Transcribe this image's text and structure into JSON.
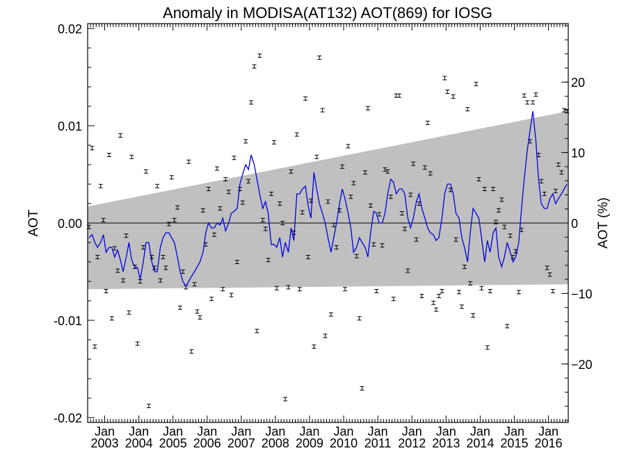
{
  "chart_data": {
    "type": "scatter",
    "title": "Anomaly in MODISA(AT132) AOT(869) for IOSG",
    "ylabel": "AOT",
    "y2label": "AOT (%)",
    "xlabel": "",
    "xlim": [
      2002.5,
      2016.58
    ],
    "ylim": [
      -0.0205,
      0.0205
    ],
    "y2lim": [
      -28.3,
      28.3
    ],
    "yticks": [
      "-0.02",
      "-0.01",
      "0.00",
      "0.01",
      "0.02"
    ],
    "y2ticks": [
      "−20",
      "−10",
      "0",
      "10",
      "20"
    ],
    "xtick_top": [
      "Jan",
      "Jan",
      "Jan",
      "Jan",
      "Jan",
      "Jan",
      "Jan",
      "Jan",
      "Jan",
      "Jan",
      "Jan",
      "Jan",
      "Jan",
      "Jan"
    ],
    "xtick_bottom": [
      "2003",
      "2004",
      "2005",
      "2006",
      "2007",
      "2008",
      "2009",
      "2010",
      "2011",
      "2012",
      "2013",
      "2014",
      "2015",
      "2016"
    ],
    "xtick_values": [
      2003,
      2004,
      2005,
      2006,
      2007,
      2008,
      2009,
      2010,
      2011,
      2012,
      2013,
      2014,
      2015,
      2016
    ],
    "grid": false,
    "colors": {
      "smooth_line": "#0000dd",
      "band": "#c0c0c0",
      "points": "#000000",
      "zero_line": "#000000"
    },
    "band": {
      "upper": [
        [
          2002.5,
          0.0017
        ],
        [
          2016.58,
          0.0115
        ]
      ],
      "lower": [
        [
          2002.5,
          -0.0068
        ],
        [
          2016.58,
          -0.0063
        ]
      ]
    },
    "points": [
      [
        2002.54,
        -0.0004
      ],
      [
        2002.63,
        0.0077
      ],
      [
        2002.71,
        -0.0127
      ],
      [
        2002.79,
        -0.0035
      ],
      [
        2002.88,
        0.0038
      ],
      [
        2002.96,
        0.0003
      ],
      [
        2003.04,
        -0.007
      ],
      [
        2003.13,
        0.007
      ],
      [
        2003.21,
        -0.0098
      ],
      [
        2003.29,
        -0.0026
      ],
      [
        2003.38,
        -0.0049
      ],
      [
        2003.46,
        0.009
      ],
      [
        2003.54,
        -0.0059
      ],
      [
        2003.63,
        -0.0013
      ],
      [
        2003.71,
        -0.0092
      ],
      [
        2003.79,
        0.0068
      ],
      [
        2003.88,
        -0.0045
      ],
      [
        2003.96,
        -0.0124
      ],
      [
        2004.04,
        -0.006
      ],
      [
        2004.13,
        -0.0025
      ],
      [
        2004.21,
        0.0053
      ],
      [
        2004.29,
        -0.0188
      ],
      [
        2004.38,
        -0.0035
      ],
      [
        2004.46,
        -0.0046
      ],
      [
        2004.54,
        0.0038
      ],
      [
        2004.63,
        -0.0059
      ],
      [
        2004.71,
        -0.0035
      ],
      [
        2004.79,
        -0.0046
      ],
      [
        2004.88,
        -0.0001
      ],
      [
        2004.96,
        0.0047
      ],
      [
        2005.04,
        0.0003
      ],
      [
        2005.13,
        0.0016
      ],
      [
        2005.21,
        -0.0087
      ],
      [
        2005.29,
        -0.005
      ],
      [
        2005.38,
        -0.0066
      ],
      [
        2005.46,
        0.0063
      ],
      [
        2005.54,
        -0.0132
      ],
      [
        2005.63,
        -0.0063
      ],
      [
        2005.71,
        -0.0091
      ],
      [
        2005.79,
        -0.0097
      ],
      [
        2005.88,
        0.0013
      ],
      [
        2005.96,
        -0.0022
      ],
      [
        2006.04,
        0.0035
      ],
      [
        2006.13,
        -0.0078
      ],
      [
        2006.21,
        -0.0012
      ],
      [
        2006.29,
        0.0056
      ],
      [
        2006.38,
        0.0015
      ],
      [
        2006.46,
        -0.0068
      ],
      [
        2006.54,
        0.0045
      ],
      [
        2006.63,
        0.0032
      ],
      [
        2006.71,
        -0.0074
      ],
      [
        2006.79,
        0.0067
      ],
      [
        2006.88,
        -0.004
      ],
      [
        2006.96,
        0.0035
      ],
      [
        2007.04,
        0.0021
      ],
      [
        2007.13,
        0.0084
      ],
      [
        2007.21,
        0.0043
      ],
      [
        2007.29,
        0.0124
      ],
      [
        2007.38,
        0.0161
      ],
      [
        2007.46,
        -0.0111
      ],
      [
        2007.54,
        0.0172
      ],
      [
        2007.63,
        0.0003
      ],
      [
        2007.71,
        -0.0006
      ],
      [
        2007.79,
        -0.0038
      ],
      [
        2007.88,
        0.003
      ],
      [
        2007.96,
        0.0083
      ],
      [
        2008.04,
        -0.0067
      ],
      [
        2008.13,
        0.002
      ],
      [
        2008.21,
        0.0
      ],
      [
        2008.29,
        -0.0181
      ],
      [
        2008.38,
        -0.0066
      ],
      [
        2008.46,
        0.0053
      ],
      [
        2008.54,
        -0.001
      ],
      [
        2008.63,
        0.0091
      ],
      [
        2008.71,
        -0.0068
      ],
      [
        2008.79,
        0.0011
      ],
      [
        2008.88,
        0.0128
      ],
      [
        2008.96,
        -0.0035
      ],
      [
        2009.04,
        0.0023
      ],
      [
        2009.13,
        -0.0127
      ],
      [
        2009.21,
        0.0068
      ],
      [
        2009.29,
        0.017
      ],
      [
        2009.38,
        0.0116
      ],
      [
        2009.46,
        -0.0116
      ],
      [
        2009.54,
        0.0022
      ],
      [
        2009.63,
        -0.0094
      ],
      [
        2009.71,
        -0.0002
      ],
      [
        2009.79,
        -0.0025
      ],
      [
        2009.88,
        0.0013
      ],
      [
        2009.96,
        0.0058
      ],
      [
        2010.04,
        -0.0068
      ],
      [
        2010.13,
        0.0079
      ],
      [
        2010.21,
        0.0027
      ],
      [
        2010.29,
        0.0041
      ],
      [
        2010.38,
        -0.0034
      ],
      [
        2010.46,
        -0.0098
      ],
      [
        2010.54,
        -0.017
      ],
      [
        2010.63,
        0.0052
      ],
      [
        2010.71,
        0.0118
      ],
      [
        2010.79,
        0.0018
      ],
      [
        2010.88,
        -0.0022
      ],
      [
        2010.96,
        -0.007
      ],
      [
        2011.04,
        0.0009
      ],
      [
        2011.13,
        -0.0023
      ],
      [
        2011.21,
        0.0055
      ],
      [
        2011.29,
        0.0053
      ],
      [
        2011.38,
        0.0027
      ],
      [
        2011.46,
        -0.0078
      ],
      [
        2011.54,
        0.0131
      ],
      [
        2011.63,
        0.0131
      ],
      [
        2011.71,
        0.001
      ],
      [
        2011.79,
        -0.0006
      ],
      [
        2011.88,
        -0.0049
      ],
      [
        2011.96,
        0.0029
      ],
      [
        2012.04,
        0.0061
      ],
      [
        2012.13,
        -0.0017
      ],
      [
        2012.21,
        0.002
      ],
      [
        2012.29,
        -0.0075
      ],
      [
        2012.38,
        0.0057
      ],
      [
        2012.46,
        0.0103
      ],
      [
        2012.54,
        0.0051
      ],
      [
        2012.63,
        -0.0082
      ],
      [
        2012.71,
        -0.0089
      ],
      [
        2012.79,
        -0.0075
      ],
      [
        2012.88,
        -0.007
      ],
      [
        2012.96,
        0.0149
      ],
      [
        2013.04,
        0.0135
      ],
      [
        2013.13,
        0.0034
      ],
      [
        2013.21,
        0.013
      ],
      [
        2013.29,
        -0.0017
      ],
      [
        2013.38,
        -0.0071
      ],
      [
        2013.46,
        -0.0086
      ],
      [
        2013.54,
        -0.0045
      ],
      [
        2013.63,
        0.0117
      ],
      [
        2013.71,
        -0.0062
      ],
      [
        2013.79,
        -0.0095
      ],
      [
        2013.88,
        0.0143
      ],
      [
        2013.96,
        0.0045
      ],
      [
        2014.04,
        -0.0067
      ],
      [
        2014.13,
        0.0035
      ],
      [
        2014.21,
        -0.0128
      ],
      [
        2014.29,
        -0.007
      ],
      [
        2014.38,
        0.0035
      ],
      [
        2014.46,
        0.0001
      ],
      [
        2014.54,
        0.0013
      ],
      [
        2014.63,
        0.0024
      ],
      [
        2014.71,
        -0.0004
      ],
      [
        2014.79,
        -0.0106
      ],
      [
        2014.88,
        -0.0013
      ],
      [
        2014.96,
        -0.0035
      ],
      [
        2015.04,
        -0.0029
      ],
      [
        2015.13,
        -0.0071
      ],
      [
        2015.21,
        -0.0007
      ],
      [
        2015.29,
        0.0131
      ],
      [
        2015.38,
        0.0124
      ],
      [
        2015.46,
        0.0084
      ],
      [
        2015.54,
        0.0124
      ],
      [
        2015.63,
        0.0132
      ],
      [
        2015.71,
        0.007
      ],
      [
        2015.79,
        0.0043
      ],
      [
        2015.88,
        0.003
      ],
      [
        2015.96,
        -0.0046
      ],
      [
        2016.04,
        -0.0053
      ],
      [
        2016.13,
        -0.007
      ],
      [
        2016.21,
        0.0033
      ],
      [
        2016.29,
        0.006
      ],
      [
        2016.38,
        0.0052
      ],
      [
        2016.46,
        0.0116
      ],
      [
        2016.54,
        0.0115
      ]
    ],
    "smooth_line": [
      [
        2002.54,
        -0.0015
      ],
      [
        2002.63,
        -0.0012
      ],
      [
        2002.71,
        -0.002
      ],
      [
        2002.79,
        -0.0025
      ],
      [
        2002.88,
        -0.002
      ],
      [
        2002.96,
        -0.0012
      ],
      [
        2003.04,
        -0.003
      ],
      [
        2003.13,
        -0.0025
      ],
      [
        2003.21,
        -0.0025
      ],
      [
        2003.29,
        -0.0035
      ],
      [
        2003.38,
        -0.0028
      ],
      [
        2003.46,
        -0.0038
      ],
      [
        2003.54,
        -0.005
      ],
      [
        2003.63,
        -0.0035
      ],
      [
        2003.71,
        -0.002
      ],
      [
        2003.79,
        -0.0038
      ],
      [
        2003.88,
        -0.0045
      ],
      [
        2003.96,
        -0.0046
      ],
      [
        2004.04,
        -0.0058
      ],
      [
        2004.13,
        -0.004
      ],
      [
        2004.21,
        -0.002
      ],
      [
        2004.29,
        -0.002
      ],
      [
        2004.38,
        -0.004
      ],
      [
        2004.46,
        -0.005
      ],
      [
        2004.54,
        -0.005
      ],
      [
        2004.63,
        -0.0025
      ],
      [
        2004.71,
        -0.0015
      ],
      [
        2004.79,
        -0.001
      ],
      [
        2004.88,
        -0.001
      ],
      [
        2004.96,
        -0.0015
      ],
      [
        2005.04,
        -0.002
      ],
      [
        2005.13,
        -0.0035
      ],
      [
        2005.21,
        -0.005
      ],
      [
        2005.29,
        -0.006
      ],
      [
        2005.38,
        -0.0065
      ],
      [
        2005.46,
        -0.006
      ],
      [
        2005.54,
        -0.0055
      ],
      [
        2005.63,
        -0.005
      ],
      [
        2005.71,
        -0.0045
      ],
      [
        2005.79,
        -0.004
      ],
      [
        2005.88,
        -0.003
      ],
      [
        2005.96,
        -0.001
      ],
      [
        2006.04,
        0.0
      ],
      [
        2006.13,
        -0.0005
      ],
      [
        2006.21,
        -0.0005
      ],
      [
        2006.29,
        0.0
      ],
      [
        2006.38,
        -0.0002
      ],
      [
        2006.46,
        0.0005
      ],
      [
        2006.54,
        -0.0008
      ],
      [
        2006.63,
        0.0
      ],
      [
        2006.71,
        0.001
      ],
      [
        2006.79,
        0.0012
      ],
      [
        2006.88,
        0.0015
      ],
      [
        2006.96,
        0.004
      ],
      [
        2007.04,
        0.005
      ],
      [
        2007.13,
        0.006
      ],
      [
        2007.21,
        0.0055
      ],
      [
        2007.29,
        0.007
      ],
      [
        2007.38,
        0.006
      ],
      [
        2007.46,
        0.0045
      ],
      [
        2007.54,
        0.003
      ],
      [
        2007.63,
        0.0015
      ],
      [
        2007.71,
        0.0022
      ],
      [
        2007.79,
        0.001
      ],
      [
        2007.88,
        -0.0022
      ],
      [
        2007.96,
        -0.0022
      ],
      [
        2008.04,
        -0.0025
      ],
      [
        2008.13,
        -0.0015
      ],
      [
        2008.21,
        -0.0035
      ],
      [
        2008.29,
        -0.002
      ],
      [
        2008.38,
        -0.003
      ],
      [
        2008.46,
        -0.0005
      ],
      [
        2008.54,
        -0.0018
      ],
      [
        2008.63,
        0.003
      ],
      [
        2008.71,
        0.003
      ],
      [
        2008.79,
        0.0035
      ],
      [
        2008.88,
        0.0038
      ],
      [
        2008.96,
        0.0018
      ],
      [
        2009.04,
        0.0005
      ],
      [
        2009.13,
        0.0052
      ],
      [
        2009.21,
        0.0035
      ],
      [
        2009.29,
        0.002
      ],
      [
        2009.38,
        0.001
      ],
      [
        2009.46,
        0.0
      ],
      [
        2009.54,
        -0.0015
      ],
      [
        2009.63,
        -0.003
      ],
      [
        2009.71,
        -0.0015
      ],
      [
        2009.79,
        0.0
      ],
      [
        2009.88,
        0.002
      ],
      [
        2009.96,
        0.0035
      ],
      [
        2010.04,
        0.0025
      ],
      [
        2010.13,
        0.001
      ],
      [
        2010.21,
        -0.0005
      ],
      [
        2010.29,
        -0.003
      ],
      [
        2010.38,
        -0.0025
      ],
      [
        2010.46,
        -0.0015
      ],
      [
        2010.54,
        -0.002
      ],
      [
        2010.63,
        -0.0025
      ],
      [
        2010.71,
        -0.0035
      ],
      [
        2010.79,
        -0.001
      ],
      [
        2010.88,
        0.0012
      ],
      [
        2010.96,
        0.001
      ],
      [
        2011.04,
        0.0
      ],
      [
        2011.13,
        0.0
      ],
      [
        2011.21,
        0.001
      ],
      [
        2011.29,
        0.003
      ],
      [
        2011.38,
        0.0045
      ],
      [
        2011.46,
        0.0042
      ],
      [
        2011.54,
        0.003
      ],
      [
        2011.63,
        0.0035
      ],
      [
        2011.71,
        0.0035
      ],
      [
        2011.79,
        0.003
      ],
      [
        2011.88,
        0.0005
      ],
      [
        2011.96,
        -0.0005
      ],
      [
        2012.04,
        0.0005
      ],
      [
        2012.13,
        0.0022
      ],
      [
        2012.21,
        0.003
      ],
      [
        2012.29,
        0.0015
      ],
      [
        2012.38,
        0.0005
      ],
      [
        2012.46,
        -0.0005
      ],
      [
        2012.54,
        -0.001
      ],
      [
        2012.63,
        -0.0012
      ],
      [
        2012.71,
        -0.0018
      ],
      [
        2012.79,
        -0.0015
      ],
      [
        2012.88,
        0.0005
      ],
      [
        2012.96,
        0.003
      ],
      [
        2013.04,
        0.004
      ],
      [
        2013.13,
        0.004
      ],
      [
        2013.21,
        0.003
      ],
      [
        2013.29,
        0.001
      ],
      [
        2013.38,
        0.0005
      ],
      [
        2013.46,
        -0.0015
      ],
      [
        2013.54,
        -0.0025
      ],
      [
        2013.63,
        -0.004
      ],
      [
        2013.71,
        -0.001
      ],
      [
        2013.79,
        0.0015
      ],
      [
        2013.88,
        0.001
      ],
      [
        2013.96,
        0.0005
      ],
      [
        2014.04,
        -0.0015
      ],
      [
        2014.13,
        -0.004
      ],
      [
        2014.21,
        -0.0018
      ],
      [
        2014.29,
        -0.003
      ],
      [
        2014.38,
        -0.001
      ],
      [
        2014.46,
        -0.0005
      ],
      [
        2014.54,
        -0.0035
      ],
      [
        2014.63,
        -0.0045
      ],
      [
        2014.71,
        -0.0035
      ],
      [
        2014.79,
        -0.002
      ],
      [
        2014.88,
        -0.003
      ],
      [
        2014.96,
        -0.004
      ],
      [
        2015.04,
        -0.0035
      ],
      [
        2015.13,
        -0.002
      ],
      [
        2015.21,
        0.0015
      ],
      [
        2015.29,
        0.0045
      ],
      [
        2015.38,
        0.0075
      ],
      [
        2015.46,
        0.0095
      ],
      [
        2015.54,
        0.0115
      ],
      [
        2015.63,
        0.0085
      ],
      [
        2015.71,
        0.0045
      ],
      [
        2015.79,
        0.002
      ],
      [
        2015.88,
        0.0015
      ],
      [
        2015.96,
        0.0015
      ],
      [
        2016.04,
        0.0025
      ],
      [
        2016.13,
        0.003
      ],
      [
        2016.21,
        0.002
      ],
      [
        2016.29,
        0.0025
      ],
      [
        2016.38,
        0.003
      ],
      [
        2016.46,
        0.0035
      ],
      [
        2016.54,
        0.004
      ]
    ]
  }
}
